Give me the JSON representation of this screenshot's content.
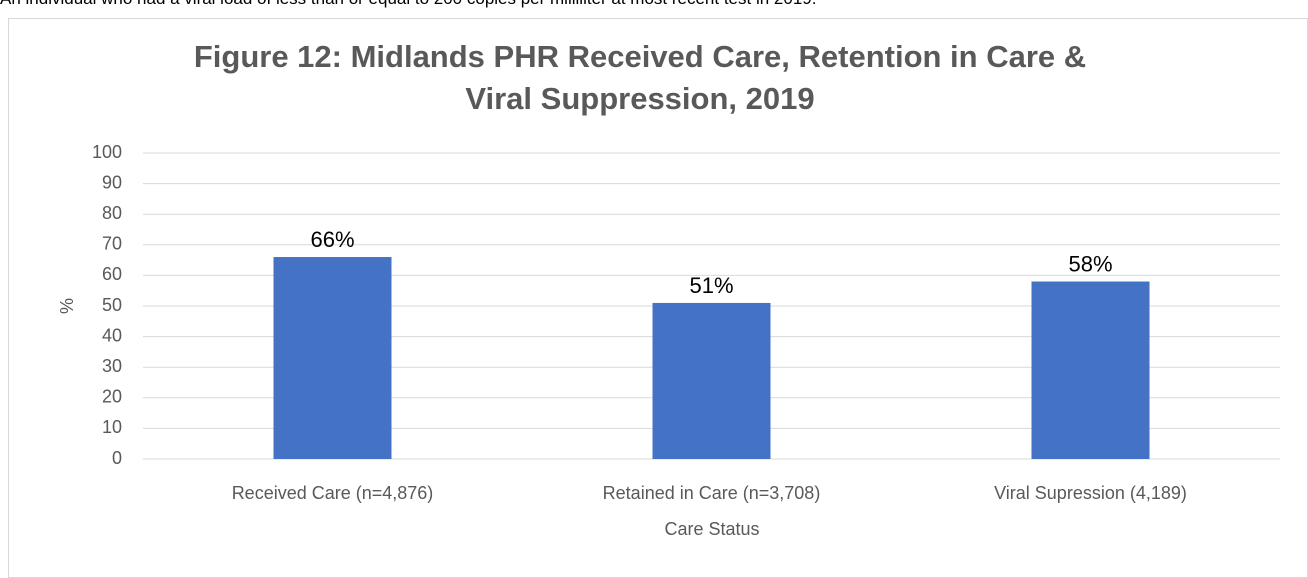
{
  "note": "An individual who had a viral load of less than or equal to 200 copies per milliliter at most recent test in 2019.",
  "chart_data": {
    "type": "bar",
    "title": "Figure 12: Midlands PHR Received Care, Retention in Care & Viral Suppression, 2019",
    "x_label": "Care Status",
    "y_label": "%",
    "categories": [
      "Received Care (n=4,876)",
      "Retained in Care (n=3,708)",
      "Viral Supression (4,189)"
    ],
    "values": [
      66,
      51,
      58
    ],
    "value_labels": [
      "66%",
      "51%",
      "58%"
    ],
    "color": "#4472c4",
    "ylim": [
      0,
      100
    ],
    "yticks": [
      0,
      10,
      20,
      30,
      40,
      50,
      60,
      70,
      80,
      90,
      100
    ],
    "grid": true
  }
}
